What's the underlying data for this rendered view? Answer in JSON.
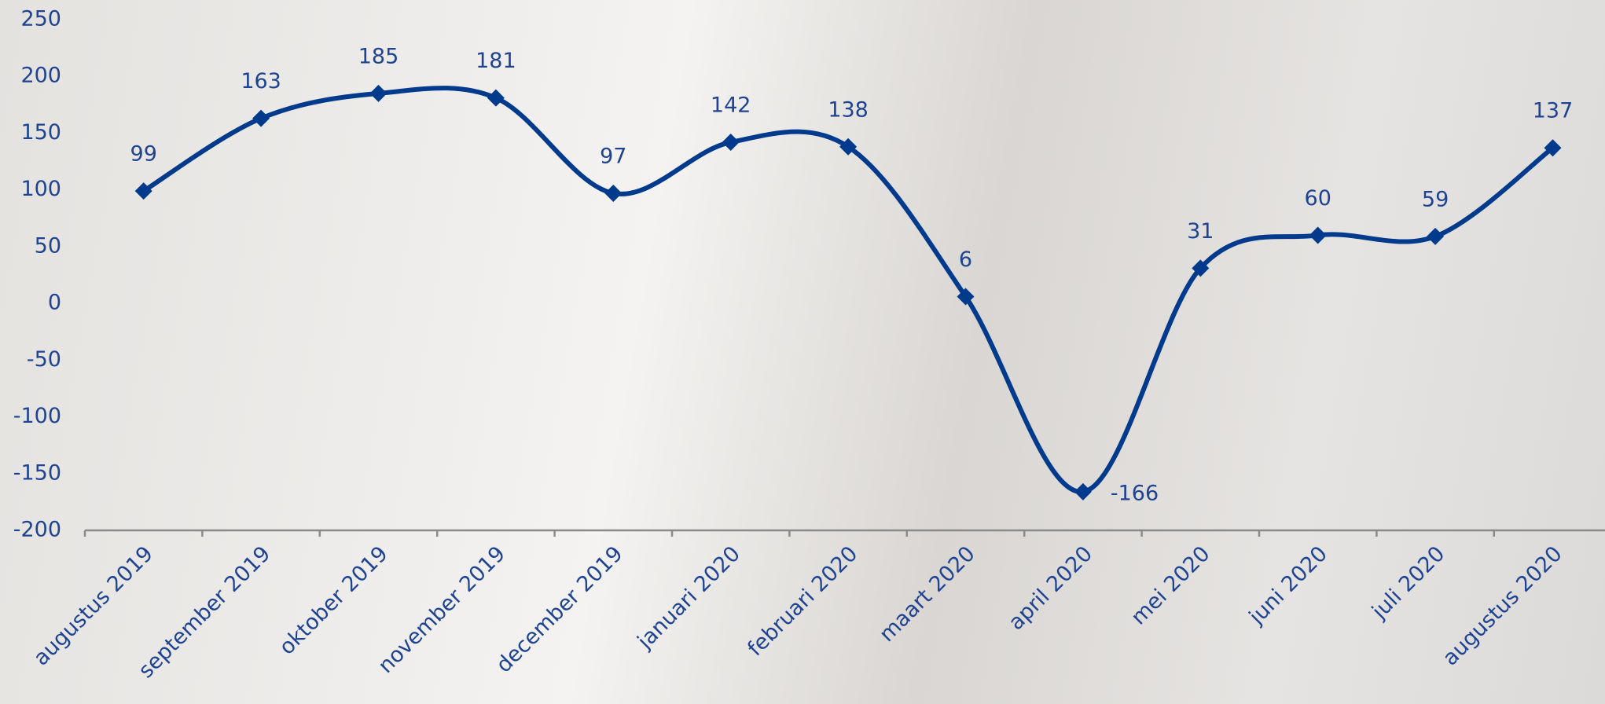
{
  "chart_data": {
    "type": "line",
    "categories": [
      "augustus 2019",
      "september 2019",
      "oktober 2019",
      "november 2019",
      "december 2019",
      "januari 2020",
      "februari 2020",
      "maart 2020",
      "april 2020",
      "mei 2020",
      "juni 2020",
      "juli 2020",
      "augustus 2020"
    ],
    "series": [
      {
        "color": "#003a8c",
        "values": [
          99,
          163,
          185,
          181,
          97,
          142,
          138,
          6,
          -166,
          31,
          60,
          59,
          137
        ]
      }
    ],
    "ylim": [
      -200,
      250
    ],
    "yticks": [
      -200,
      -150,
      -100,
      -50,
      0,
      50,
      100,
      150,
      200,
      250
    ],
    "grid": false,
    "smooth": true,
    "marker": "diamond",
    "axis_color": "#8a8a8a"
  }
}
